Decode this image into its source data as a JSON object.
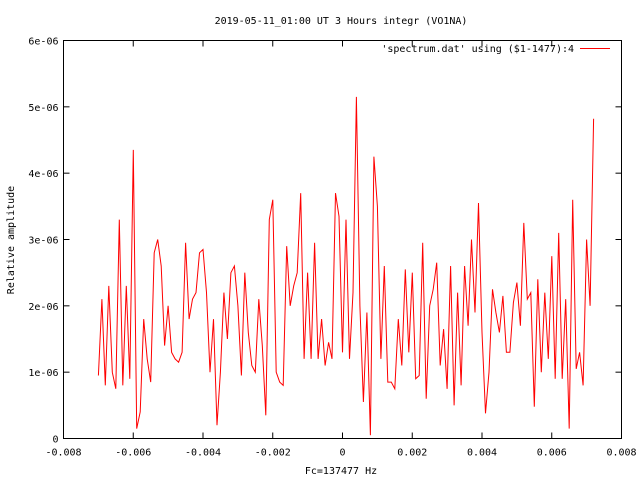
{
  "chart_data": {
    "type": "line",
    "title": "2019-05-11_01:00 UT 3 Hours integr (VO1NA)",
    "xlabel": "Fc=137477 Hz",
    "ylabel": "Relative amplitude",
    "xlim": [
      -0.008,
      0.008
    ],
    "ylim": [
      0,
      6e-06
    ],
    "x_ticks": [
      -0.008,
      -0.006,
      -0.004,
      -0.002,
      0,
      0.002,
      0.004,
      0.006,
      0.008
    ],
    "x_tick_labels": [
      "-0.008",
      "-0.006",
      "-0.004",
      "-0.002",
      "0",
      "0.002",
      "0.004",
      "0.006",
      "0.008"
    ],
    "y_ticks": [
      0,
      1e-06,
      2e-06,
      3e-06,
      4e-06,
      5e-06,
      6e-06
    ],
    "y_tick_labels": [
      "0",
      "1e-06",
      "2e-06",
      "3e-06",
      "4e-06",
      "5e-06",
      "6e-06"
    ],
    "grid": false,
    "legend_position": "top-right",
    "series": [
      {
        "name": "'spectrum.dat' using ($1-1477):4",
        "color": "#ff0000",
        "x_start": -0.007,
        "x_step": 0.0001,
        "values": [
          9.5e-07,
          2.1e-06,
          8e-07,
          2.3e-06,
          1e-06,
          7.5e-07,
          3.3e-06,
          8e-07,
          2.3e-06,
          9e-07,
          4.35e-06,
          1.5e-07,
          4e-07,
          1.8e-06,
          1.2e-06,
          8.5e-07,
          2.8e-06,
          3e-06,
          2.6e-06,
          1.4e-06,
          2e-06,
          1.3e-06,
          1.2e-06,
          1.15e-06,
          1.3e-06,
          2.95e-06,
          1.8e-06,
          2.1e-06,
          2.2e-06,
          2.8e-06,
          2.85e-06,
          2.2e-06,
          1e-06,
          1.8e-06,
          2e-07,
          1e-06,
          2.2e-06,
          1.5e-06,
          2.5e-06,
          2.6e-06,
          2e-06,
          9.5e-07,
          2.5e-06,
          1.6e-06,
          1.1e-06,
          1e-06,
          2.1e-06,
          1.4e-06,
          3.5e-07,
          3.3e-06,
          3.6e-06,
          1e-06,
          8.5e-07,
          8e-07,
          2.9e-06,
          2e-06,
          2.3e-06,
          2.5e-06,
          3.7e-06,
          1.2e-06,
          2.5e-06,
          1.2e-06,
          2.95e-06,
          1.2e-06,
          1.8e-06,
          1.1e-06,
          1.45e-06,
          1.2e-06,
          3.7e-06,
          3.35e-06,
          1.3e-06,
          3.3e-06,
          1.2e-06,
          2.2e-06,
          5.15e-06,
          2e-06,
          5.5e-07,
          1.9e-06,
          5e-08,
          4.25e-06,
          3.5e-06,
          1.2e-06,
          2.6e-06,
          8.5e-07,
          8.5e-07,
          7.5e-07,
          1.8e-06,
          1.1e-06,
          2.55e-06,
          1.3e-06,
          2.5e-06,
          9e-07,
          9.5e-07,
          2.95e-06,
          6e-07,
          2e-06,
          2.25e-06,
          2.65e-06,
          1.1e-06,
          1.65e-06,
          7.5e-07,
          2.6e-06,
          5e-07,
          2.2e-06,
          8e-07,
          2.6e-06,
          1.7e-06,
          3e-06,
          1.9e-06,
          3.55e-06,
          1.6e-06,
          3.8e-07,
          1e-06,
          2.25e-06,
          1.9e-06,
          1.6e-06,
          2.15e-06,
          1.3e-06,
          1.3e-06,
          2.05e-06,
          2.35e-06,
          1.7e-06,
          3.25e-06,
          2.1e-06,
          2.2e-06,
          4.8e-07,
          2.4e-06,
          1e-06,
          2.2e-06,
          1.2e-06,
          2.75e-06,
          9e-07,
          3.1e-06,
          9e-07,
          2.1e-06,
          1.5e-07,
          3.6e-06,
          1.05e-06,
          1.3e-06,
          8e-07,
          3e-06,
          2e-06,
          4.82e-06
        ]
      }
    ]
  }
}
